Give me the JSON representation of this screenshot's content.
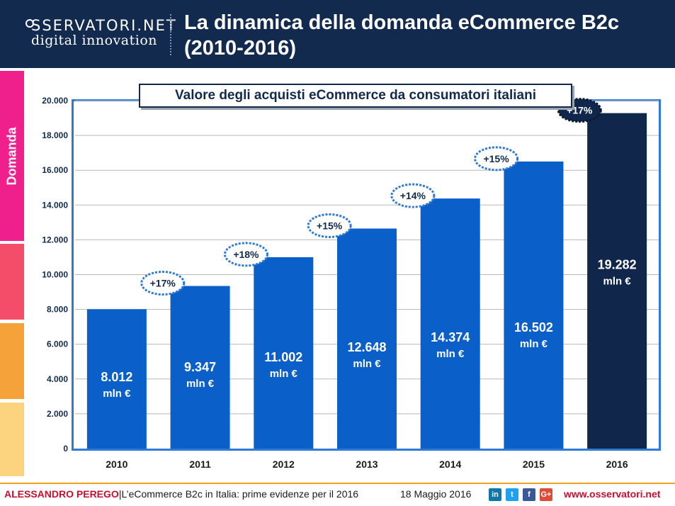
{
  "header": {
    "logo_top": "SSERVATORI.NET",
    "logo_bottom": "digital innovation",
    "title_line1": "La dinamica della domanda eCommerce B2c",
    "title_line2": "(2010-2016)"
  },
  "side_bar": {
    "label": "Domanda",
    "colors": [
      "#ef1f8c",
      "#f44d6a",
      "#f6a23a",
      "#fcd480"
    ]
  },
  "chart_data": {
    "type": "bar",
    "title": "Valore degli acquisti eCommerce da consumatori italiani",
    "categories": [
      "2010",
      "2011",
      "2012",
      "2013",
      "2014",
      "2015",
      "2016"
    ],
    "values": [
      8012,
      9347,
      11002,
      12648,
      14374,
      16502,
      19282
    ],
    "value_labels": [
      "8.012",
      "9.347",
      "11.002",
      "12.648",
      "14.374",
      "16.502",
      "19.282"
    ],
    "unit_label": "mln €",
    "growth_labels": [
      "+17%",
      "+18%",
      "+15%",
      "+14%",
      "+15%",
      "+17%"
    ],
    "y_ticks": [
      "0",
      "2.000",
      "4.000",
      "6.000",
      "8.000",
      "10.000",
      "12.000",
      "14.000",
      "16.000",
      "18.000",
      "20.000"
    ],
    "ylim": [
      0,
      20000
    ],
    "grid": true,
    "colors": {
      "bar": "#0a5fc8",
      "bar_last": "#10264a",
      "badge_bg": "#ffffff",
      "badge_border": "#2f7ad6",
      "badge_text": "#122a4d"
    }
  },
  "footer": {
    "author": "ALESSANDRO PEREGO",
    "separator": "|",
    "text": "L’eCommerce B2c in Italia: prime evidenze per il 2016",
    "date": "18 Maggio 2016",
    "social": [
      {
        "name": "linkedin-icon",
        "glyph": "in",
        "color": "#0e76a8"
      },
      {
        "name": "twitter-icon",
        "glyph": "t",
        "color": "#1da1f2"
      },
      {
        "name": "facebook-icon",
        "glyph": "f",
        "color": "#3b5998"
      },
      {
        "name": "google-plus-icon",
        "glyph": "G+",
        "color": "#dd4b39"
      }
    ],
    "website": "www.osservatori.net"
  }
}
